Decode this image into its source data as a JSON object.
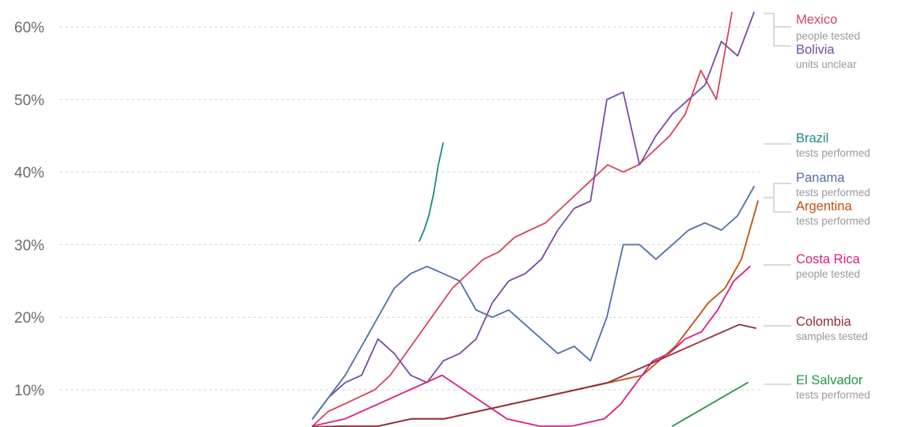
{
  "chart_data": {
    "type": "line",
    "title": "",
    "xlabel": "",
    "ylabel": "",
    "ylim": [
      5,
      62
    ],
    "y_ticks": [
      {
        "value": 10,
        "label": "10%"
      },
      {
        "value": 20,
        "label": "20%"
      },
      {
        "value": 30,
        "label": "30%"
      },
      {
        "value": 40,
        "label": "40%"
      },
      {
        "value": 50,
        "label": "50%"
      },
      {
        "value": 60,
        "label": "60%"
      }
    ],
    "grid": true,
    "legend_placement": "right",
    "x_note": "x = observation index (daily), x-axis labels not visible",
    "series": [
      {
        "name": "Mexico",
        "unit": "people tested",
        "color": "#d6445b",
        "x": [
          0,
          5,
          10,
          15,
          20,
          25,
          30,
          35,
          40,
          45,
          50,
          55,
          60,
          65,
          70,
          75,
          80,
          85,
          90,
          95,
          100,
          105,
          110,
          115,
          120,
          125,
          130,
          135
        ],
        "y": [
          5,
          7,
          8,
          9,
          10,
          12,
          15,
          18,
          21,
          24,
          26,
          28,
          29,
          31,
          32,
          33,
          35,
          37,
          39,
          41,
          40,
          41,
          43,
          45,
          48,
          54,
          50,
          62
        ]
      },
      {
        "name": "Bolivia",
        "unit": "units unclear",
        "color": "#7a4aa3",
        "x": [
          0,
          5,
          10,
          15,
          20,
          25,
          30,
          35,
          40,
          45,
          50,
          55,
          60,
          65,
          70,
          75,
          80,
          85,
          90,
          95,
          100,
          105,
          110,
          115,
          120,
          125,
          130,
          135
        ],
        "y": [
          6,
          9,
          11,
          12,
          17,
          15,
          12,
          11,
          14,
          15,
          17,
          22,
          25,
          26,
          28,
          32,
          35,
          36,
          50,
          51,
          41,
          45,
          48,
          50,
          52,
          58,
          56,
          62
        ]
      },
      {
        "name": "Brazil",
        "unit": "tests performed",
        "color": "#1b8a84",
        "x": [
          0,
          1,
          2,
          3,
          4,
          5
        ],
        "y": [
          30.5,
          32,
          34,
          37,
          41,
          44
        ]
      },
      {
        "name": "Panama",
        "unit": "tests performed",
        "color": "#4f6fa5",
        "x": [
          0,
          5,
          10,
          15,
          20,
          25,
          30,
          35,
          40,
          45,
          50,
          55,
          60,
          65,
          70,
          75,
          80,
          85,
          90,
          95,
          100,
          105,
          110,
          115,
          120,
          125,
          130,
          135
        ],
        "y": [
          6,
          9,
          12,
          16,
          20,
          24,
          26,
          27,
          26,
          25,
          21,
          20,
          21,
          19,
          17,
          15,
          16,
          14,
          20,
          30,
          30,
          28,
          30,
          32,
          33,
          32,
          34,
          38
        ]
      },
      {
        "name": "Argentina",
        "unit": "tests performed",
        "color": "#c14f10",
        "x": [
          0,
          10,
          20,
          30,
          40,
          50,
          60,
          70,
          80,
          90,
          100,
          105,
          110,
          115,
          120,
          125,
          130,
          135
        ],
        "y": [
          4,
          5,
          5,
          6,
          6,
          7,
          8,
          9,
          10,
          11,
          12,
          14,
          16,
          19,
          22,
          24,
          28,
          36
        ]
      },
      {
        "name": "Costa Rica",
        "unit": "people tested",
        "color": "#d91e85",
        "x": [
          0,
          10,
          20,
          30,
          40,
          50,
          60,
          70,
          80,
          90,
          95,
          100,
          105,
          110,
          115,
          120,
          125,
          130,
          135
        ],
        "y": [
          5,
          6,
          8,
          10,
          12,
          9,
          6,
          5,
          5,
          6,
          8,
          11,
          14,
          15,
          17,
          18,
          21,
          25,
          27
        ]
      },
      {
        "name": "Colombia",
        "unit": "samples tested",
        "color": "#8e2d3c",
        "x": [
          0,
          10,
          20,
          30,
          40,
          50,
          60,
          70,
          80,
          90,
          100,
          110,
          120,
          130,
          135
        ],
        "y": [
          4,
          5,
          5,
          6,
          6,
          7,
          8,
          9,
          10,
          11,
          13,
          15,
          17,
          19,
          18.5
        ]
      },
      {
        "name": "El Salvador",
        "unit": "tests performed",
        "color": "#23944a",
        "x": [
          0,
          5,
          10,
          15,
          20,
          25,
          30
        ],
        "y": [
          5,
          6,
          7,
          8,
          9,
          10,
          11
        ]
      }
    ]
  }
}
